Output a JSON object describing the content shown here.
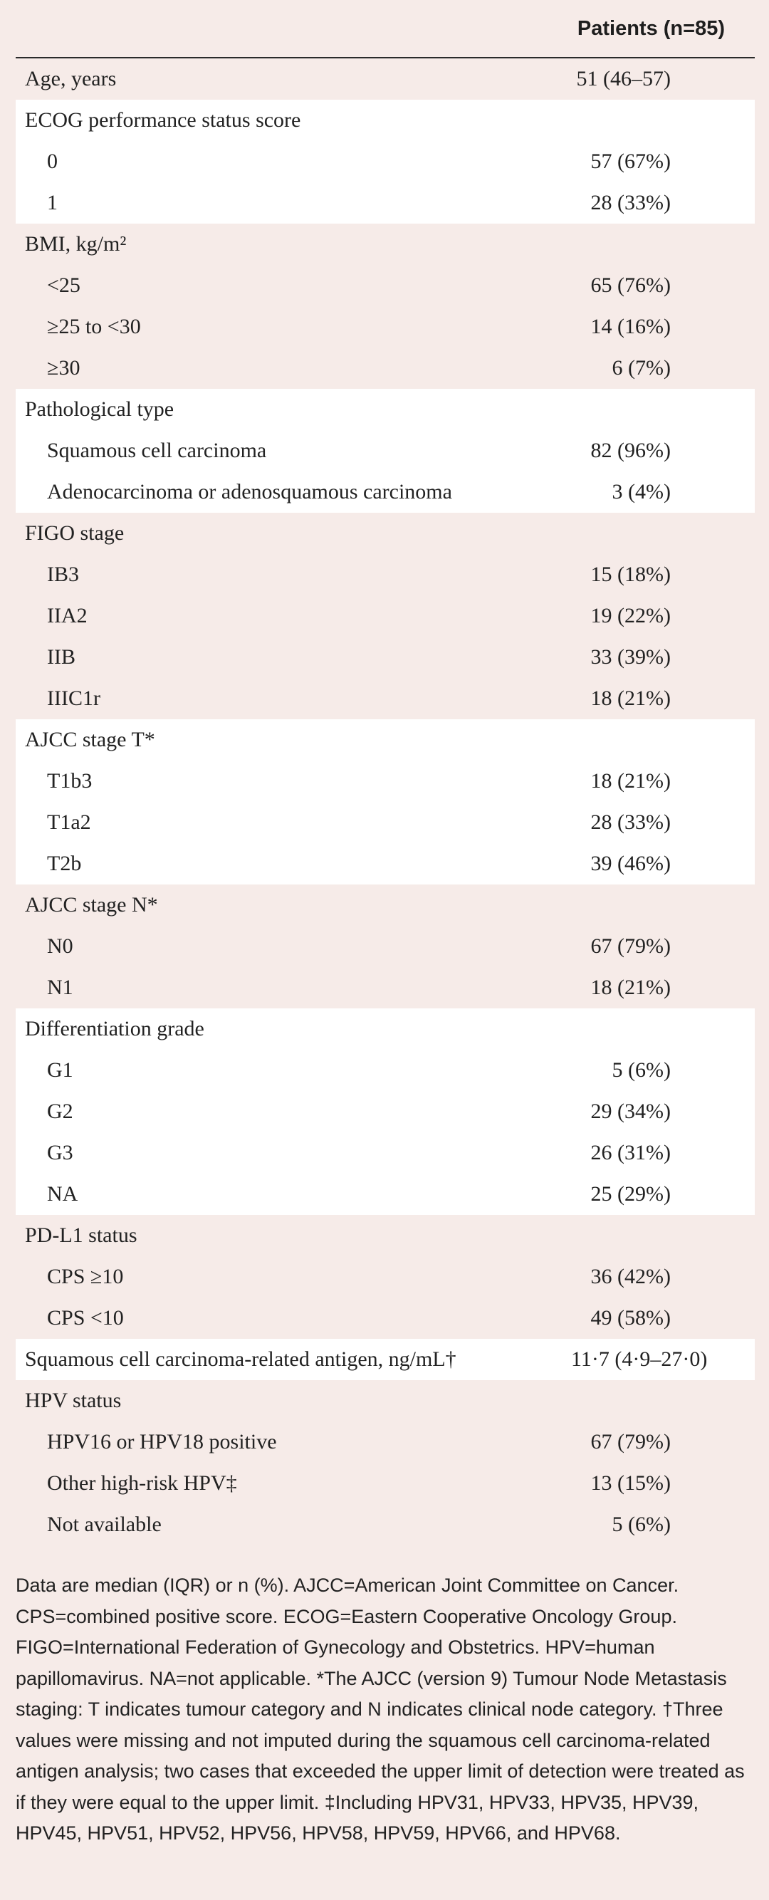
{
  "header": {
    "column": "Patients (n=85)"
  },
  "rows": {
    "age": {
      "label": "Age, years",
      "value": "51 (46–57)"
    },
    "ecog": {
      "title": "ECOG performance status score",
      "items": [
        {
          "label": "0",
          "value": "57 (67%)"
        },
        {
          "label": "1",
          "value": "28 (33%)"
        }
      ]
    },
    "bmi": {
      "title": "BMI, kg/m²",
      "items": [
        {
          "label": "<25",
          "value": "65 (76%)"
        },
        {
          "label": "≥25 to <30",
          "value": "14 (16%)"
        },
        {
          "label": "≥30",
          "value": "6 (7%)"
        }
      ]
    },
    "pathology": {
      "title": "Pathological type",
      "items": [
        {
          "label": "Squamous cell carcinoma",
          "value": "82 (96%)"
        },
        {
          "label": "Adenocarcinoma or adenosquamous carcinoma",
          "value": "3 (4%)"
        }
      ]
    },
    "figo": {
      "title": "FIGO stage",
      "items": [
        {
          "label": "IB3",
          "value": "15 (18%)"
        },
        {
          "label": "IIA2",
          "value": "19 (22%)"
        },
        {
          "label": "IIB",
          "value": "33 (39%)"
        },
        {
          "label": "IIIC1r",
          "value": "18 (21%)"
        }
      ]
    },
    "ajcc_t": {
      "title": "AJCC stage T*",
      "items": [
        {
          "label": "T1b3",
          "value": "18 (21%)"
        },
        {
          "label": "T1a2",
          "value": "28 (33%)"
        },
        {
          "label": "T2b",
          "value": "39 (46%)"
        }
      ]
    },
    "ajcc_n": {
      "title": "AJCC stage N*",
      "items": [
        {
          "label": "N0",
          "value": "67 (79%)"
        },
        {
          "label": "N1",
          "value": "18 (21%)"
        }
      ]
    },
    "grade": {
      "title": "Differentiation grade",
      "items": [
        {
          "label": "G1",
          "value": "5 (6%)"
        },
        {
          "label": "G2",
          "value": "29 (34%)"
        },
        {
          "label": "G3",
          "value": "26 (31%)"
        },
        {
          "label": "NA",
          "value": "25 (29%)"
        }
      ]
    },
    "pdl1": {
      "title": "PD-L1 status",
      "items": [
        {
          "label": "CPS ≥10",
          "value": "36 (42%)"
        },
        {
          "label": "CPS <10",
          "value": "49 (58%)"
        }
      ]
    },
    "scc_antigen": {
      "label": "Squamous cell carcinoma-related antigen, ng/mL†",
      "value": "11·7 (4·9–27·0)"
    },
    "hpv": {
      "title": "HPV status",
      "items": [
        {
          "label": "HPV16 or HPV18 positive",
          "value": "67 (79%)"
        },
        {
          "label": "Other high-risk HPV‡",
          "value": "13 (15%)"
        },
        {
          "label": "Not available",
          "value": "5 (6%)"
        }
      ]
    }
  },
  "footnote": "Data are median (IQR) or n (%). AJCC=American Joint Committee on Cancer. CPS=combined positive score. ECOG=Eastern Cooperative Oncology Group. FIGO=International Federation of Gynecology and Obstetrics. HPV=human papillomavirus. NA=not applicable. *The AJCC (version 9) Tumour Node Metastasis staging: T indicates tumour category and N indicates clinical node category. †Three values were missing and not imputed during the squamous cell carcinoma-related antigen analysis; two cases that exceeded the upper limit of detection were treated as if they were equal to the upper limit. ‡Including HPV31, HPV33, HPV35, HPV39, HPV45, HPV51, HPV52, HPV56, HPV58, HPV59, HPV66, and HPV68."
}
